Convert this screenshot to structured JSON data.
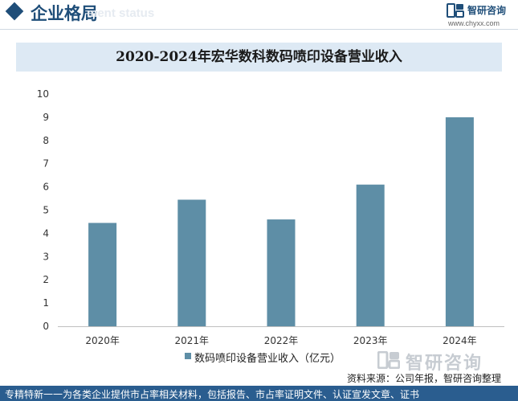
{
  "header": {
    "section_title": "企业格局",
    "section_subtitle": "ment status"
  },
  "brand": {
    "name": "智研咨询",
    "url": "www.chyxx.com"
  },
  "chart_data": {
    "type": "bar",
    "title": "2020-2024年宏华数科数码喷印设备营业收入",
    "categories": [
      "2020年",
      "2021年",
      "2022年",
      "2023年",
      "2024年"
    ],
    "series": [
      {
        "name": "数码喷印设备营业收入（亿元）",
        "values": [
          4.45,
          5.45,
          4.6,
          6.1,
          9.0
        ]
      }
    ],
    "ylim": [
      0,
      10
    ],
    "yticks": [
      "0",
      "1",
      "2",
      "3",
      "4",
      "5",
      "6",
      "7",
      "8",
      "9",
      "10"
    ],
    "grid": false,
    "legend_position": "bottom",
    "bar_color": "#5e8ea6"
  },
  "watermark": {
    "text": "智研咨询"
  },
  "source_text": "资料来源：公司年报，智研咨询整理",
  "footer_text": "专精特新一一为各类企业提供市占率相关材料，包括报告、市占率证明文件、认证宣发文章、证书"
}
